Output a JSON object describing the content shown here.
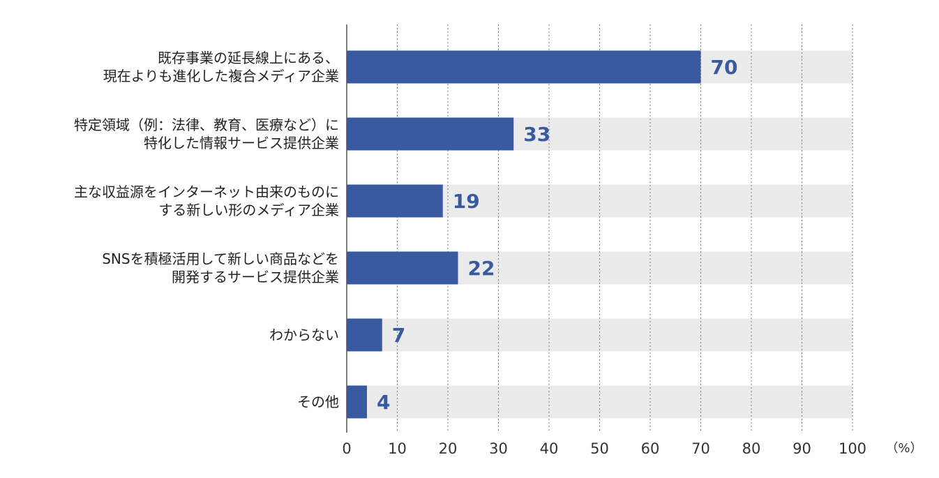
{
  "chart_data": {
    "type": "bar",
    "orientation": "horizontal",
    "categories": [
      [
        "既存事業の延長線上にある、",
        "現在よりも進化した複合メディア企業"
      ],
      [
        "特定領域（例：法律、教育、医療など）に",
        "特化した情報サービス提供企業"
      ],
      [
        "主な収益源をインターネット由来のものに",
        "する新しい形のメディア企業"
      ],
      [
        "SNSを積極活用して新しい商品などを",
        "開発するサービス提供企業"
      ],
      [
        "わからない"
      ],
      [
        "その他"
      ]
    ],
    "values": [
      70,
      33,
      19,
      22,
      7,
      4
    ],
    "value_labels": [
      "70",
      "33",
      "19",
      "22",
      "7",
      "4"
    ],
    "xlim": [
      0,
      100
    ],
    "xticks": [
      "0",
      "10",
      "20",
      "30",
      "40",
      "50",
      "60",
      "70",
      "80",
      "90",
      "100"
    ],
    "unit": "（%）",
    "grid": "vertical-dotted",
    "colors": {
      "bar": "#3a5aa0",
      "track": "#ebebeb",
      "value_text": "#3a5aa0",
      "axis": "#555555",
      "grid": "#777777"
    }
  }
}
